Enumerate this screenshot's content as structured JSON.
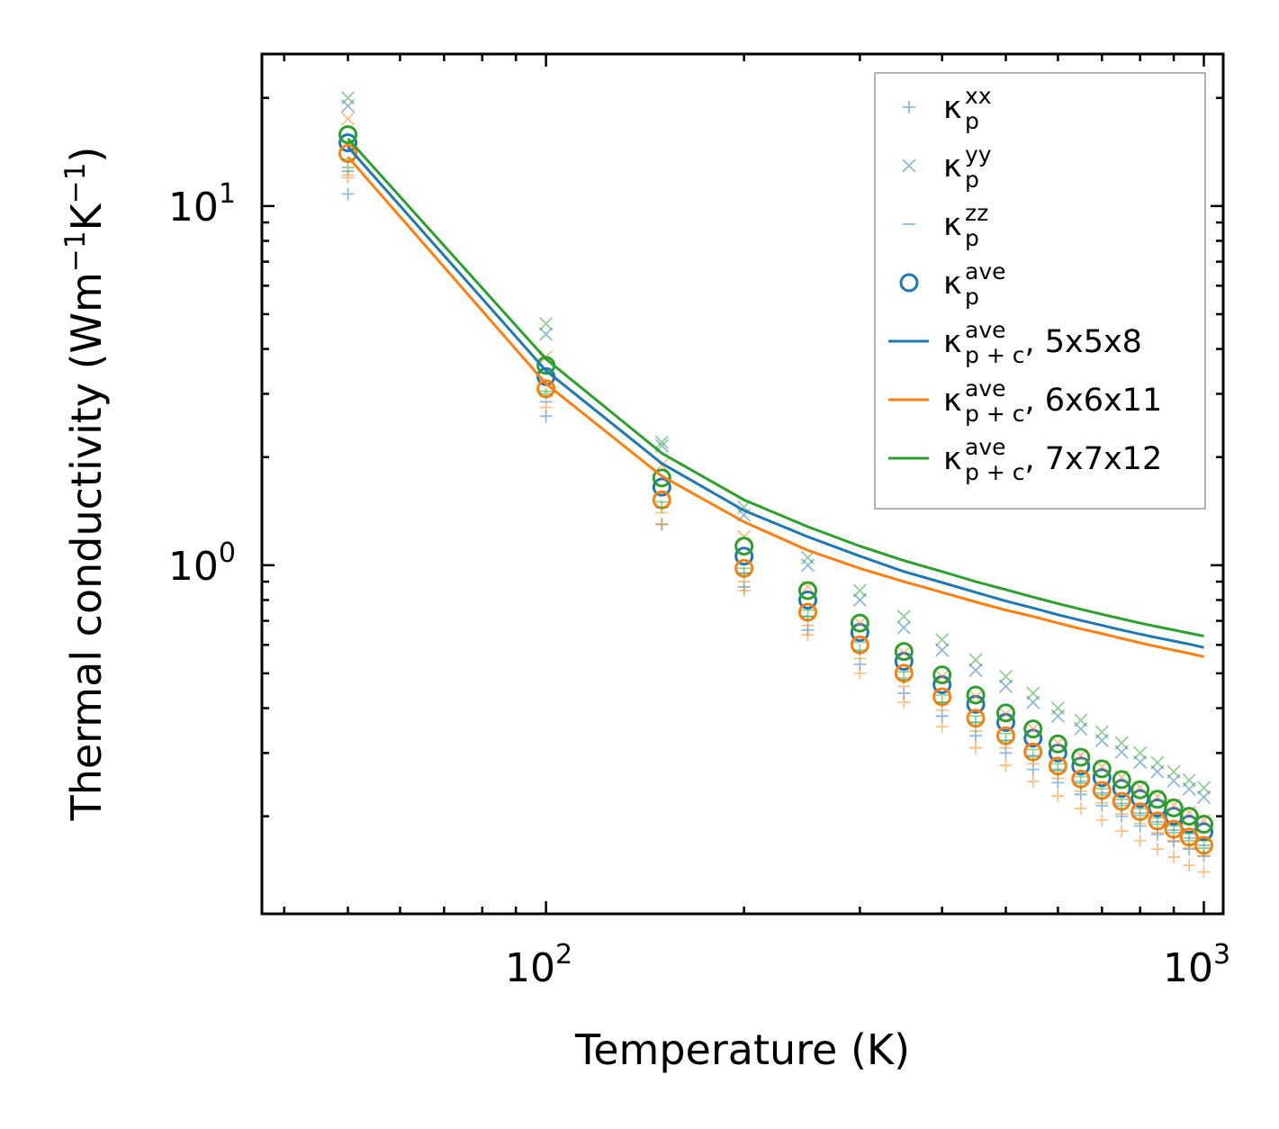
{
  "chart_data": {
    "type": "scatter",
    "title": "",
    "xlabel": "Temperature (K)",
    "ylabel": {
      "prefix": "Thermal conductivity (Wm",
      "exp1": "−1",
      "mid": "K",
      "exp2": "−1",
      "suffix": ")"
    },
    "xscale": "log",
    "yscale": "log",
    "xlim": [
      37,
      1070
    ],
    "ylim": [
      0.107,
      26.5
    ],
    "x_ticks": [
      {
        "value": 100,
        "base": "10",
        "exp": "2"
      },
      {
        "value": 1000,
        "base": "10",
        "exp": "3"
      }
    ],
    "y_ticks": [
      {
        "value": 1,
        "base": "10",
        "exp": "0"
      },
      {
        "value": 10,
        "base": "10",
        "exp": "1"
      }
    ],
    "legend_position": "upper right",
    "temperatures": [
      50,
      100,
      150,
      200,
      250,
      300,
      350,
      400,
      450,
      500,
      550,
      600,
      650,
      700,
      750,
      800,
      850,
      900,
      950,
      1000
    ],
    "series": [
      {
        "name": "5x5x8",
        "color": "#1f77b4",
        "kxx": [
          10.8,
          2.6,
          1.3,
          0.87,
          0.66,
          0.53,
          0.44,
          0.38,
          0.335,
          0.3,
          0.27,
          0.248,
          0.23,
          0.214,
          0.2,
          0.188,
          0.178,
          0.17,
          0.162,
          0.155
        ],
        "kyy": [
          19.0,
          4.4,
          2.15,
          1.38,
          1.0,
          0.8,
          0.67,
          0.58,
          0.51,
          0.46,
          0.415,
          0.38,
          0.35,
          0.325,
          0.302,
          0.283,
          0.266,
          0.251,
          0.238,
          0.226
        ],
        "kzz": [
          12.5,
          2.85,
          1.45,
          0.95,
          0.72,
          0.575,
          0.48,
          0.415,
          0.365,
          0.325,
          0.295,
          0.27,
          0.25,
          0.232,
          0.217,
          0.204,
          0.193,
          0.183,
          0.174,
          0.166
        ],
        "kave": [
          15.0,
          3.35,
          1.65,
          1.06,
          0.8,
          0.65,
          0.54,
          0.465,
          0.41,
          0.365,
          0.33,
          0.3,
          0.276,
          0.256,
          0.239,
          0.224,
          0.211,
          0.2,
          0.19,
          0.181
        ],
        "kpc": [
          14.6,
          3.48,
          1.92,
          1.42,
          1.2,
          1.06,
          0.96,
          0.895,
          0.84,
          0.795,
          0.76,
          0.728,
          0.702,
          0.68,
          0.66,
          0.643,
          0.628,
          0.615,
          0.603,
          0.59
        ]
      },
      {
        "name": "6x6x11",
        "color": "#ff7f0e",
        "kxx": [
          12.0,
          2.75,
          1.3,
          0.85,
          0.64,
          0.5,
          0.415,
          0.355,
          0.31,
          0.277,
          0.25,
          0.228,
          0.21,
          0.195,
          0.182,
          0.171,
          0.162,
          0.154,
          0.146,
          0.14
        ],
        "kyy": [
          17.5,
          3.8,
          1.9,
          1.2,
          0.87,
          0.69,
          0.57,
          0.49,
          0.43,
          0.385,
          0.35,
          0.32,
          0.295,
          0.275,
          0.257,
          0.241,
          0.227,
          0.215,
          0.205,
          0.195
        ],
        "kzz": [
          12.2,
          2.95,
          1.4,
          0.9,
          0.68,
          0.55,
          0.46,
          0.395,
          0.345,
          0.31,
          0.28,
          0.255,
          0.235,
          0.218,
          0.203,
          0.191,
          0.18,
          0.171,
          0.163,
          0.155
        ],
        "kave": [
          14.0,
          3.1,
          1.52,
          0.98,
          0.74,
          0.6,
          0.5,
          0.43,
          0.375,
          0.335,
          0.302,
          0.276,
          0.254,
          0.236,
          0.22,
          0.206,
          0.194,
          0.184,
          0.175,
          0.166
        ],
        "kpc": [
          13.7,
          3.2,
          1.77,
          1.32,
          1.1,
          0.98,
          0.9,
          0.84,
          0.79,
          0.75,
          0.72,
          0.69,
          0.665,
          0.645,
          0.625,
          0.608,
          0.593,
          0.58,
          0.568,
          0.556
        ]
      },
      {
        "name": "7x7x12",
        "color": "#2ca02c",
        "kxx": [
          12.8,
          3.0,
          1.45,
          0.95,
          0.72,
          0.58,
          0.485,
          0.415,
          0.365,
          0.325,
          0.293,
          0.268,
          0.247,
          0.229,
          0.214,
          0.201,
          0.19,
          0.18,
          0.171,
          0.163
        ],
        "kyy": [
          20.0,
          4.7,
          2.2,
          1.45,
          1.05,
          0.85,
          0.72,
          0.62,
          0.545,
          0.49,
          0.44,
          0.4,
          0.37,
          0.343,
          0.32,
          0.3,
          0.282,
          0.266,
          0.252,
          0.24
        ],
        "kzz": [
          13.5,
          3.05,
          1.5,
          0.98,
          0.75,
          0.61,
          0.505,
          0.435,
          0.38,
          0.34,
          0.307,
          0.28,
          0.258,
          0.239,
          0.223,
          0.21,
          0.198,
          0.188,
          0.179,
          0.171
        ],
        "kave": [
          15.8,
          3.6,
          1.75,
          1.13,
          0.85,
          0.69,
          0.575,
          0.495,
          0.435,
          0.388,
          0.35,
          0.318,
          0.292,
          0.271,
          0.253,
          0.237,
          0.223,
          0.211,
          0.2,
          0.19
        ],
        "kpc": [
          15.4,
          3.75,
          2.05,
          1.52,
          1.28,
          1.13,
          1.03,
          0.96,
          0.9,
          0.855,
          0.815,
          0.782,
          0.754,
          0.73,
          0.709,
          0.69,
          0.674,
          0.66,
          0.647,
          0.635
        ]
      }
    ],
    "legend": [
      {
        "kind": "plus",
        "color": "#1f77b4",
        "sym": "κ",
        "sup": "xx",
        "sub": "p",
        "suffix": ""
      },
      {
        "kind": "cross",
        "color": "#1f77b4",
        "sym": "κ",
        "sup": "yy",
        "sub": "p",
        "suffix": ""
      },
      {
        "kind": "dash",
        "color": "#1f77b4",
        "sym": "κ",
        "sup": "zz",
        "sub": "p",
        "suffix": ""
      },
      {
        "kind": "circle",
        "color": "#1f77b4",
        "sym": "κ",
        "sup": "ave",
        "sub": "p",
        "suffix": ""
      },
      {
        "kind": "line",
        "color": "#1f77b4",
        "sym": "κ",
        "sup": "ave",
        "sub": "p + c",
        "suffix": ", 5x5x8"
      },
      {
        "kind": "line",
        "color": "#ff7f0e",
        "sym": "κ",
        "sup": "ave",
        "sub": "p + c",
        "suffix": ", 6x6x11"
      },
      {
        "kind": "line",
        "color": "#2ca02c",
        "sym": "κ",
        "sup": "ave",
        "sub": "p + c",
        "suffix": ", 7x7x12"
      }
    ]
  }
}
